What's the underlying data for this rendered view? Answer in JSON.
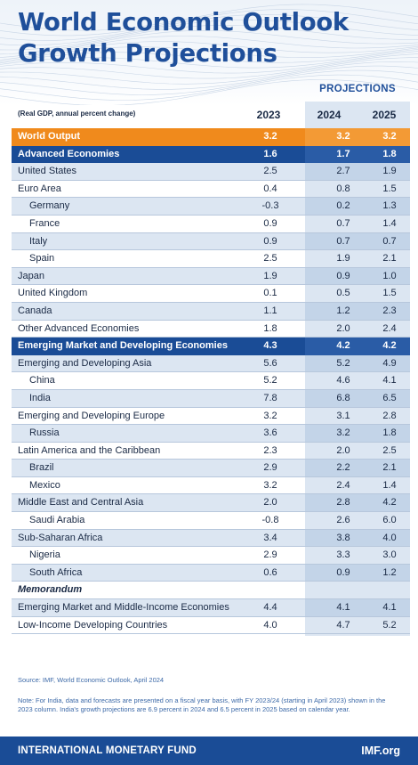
{
  "title_line1": "World Economic Outlook",
  "title_line2": "Growth Projections",
  "projections_label": "PROJECTIONS",
  "unit_note": "(Real GDP, annual percent change)",
  "years": [
    "2023",
    "2024",
    "2025"
  ],
  "rows": [
    {
      "name": "World Output",
      "values": [
        "3.2",
        "3.2",
        "3.2"
      ],
      "style": "orange"
    },
    {
      "name": "Advanced Economies",
      "values": [
        "1.6",
        "1.7",
        "1.8"
      ],
      "style": "blue"
    },
    {
      "name": "United States",
      "values": [
        "2.5",
        "2.7",
        "1.9"
      ],
      "style": "light"
    },
    {
      "name": "Euro Area",
      "values": [
        "0.4",
        "0.8",
        "1.5"
      ],
      "style": "white"
    },
    {
      "name": "Germany",
      "values": [
        "-0.3",
        "0.2",
        "1.3"
      ],
      "style": "light",
      "indent": true
    },
    {
      "name": "France",
      "values": [
        "0.9",
        "0.7",
        "1.4"
      ],
      "style": "white",
      "indent": true
    },
    {
      "name": "Italy",
      "values": [
        "0.9",
        "0.7",
        "0.7"
      ],
      "style": "light",
      "indent": true
    },
    {
      "name": "Spain",
      "values": [
        "2.5",
        "1.9",
        "2.1"
      ],
      "style": "white",
      "indent": true
    },
    {
      "name": "Japan",
      "values": [
        "1.9",
        "0.9",
        "1.0"
      ],
      "style": "light"
    },
    {
      "name": "United Kingdom",
      "values": [
        "0.1",
        "0.5",
        "1.5"
      ],
      "style": "white"
    },
    {
      "name": "Canada",
      "values": [
        "1.1",
        "1.2",
        "2.3"
      ],
      "style": "light"
    },
    {
      "name": "Other Advanced Economies",
      "values": [
        "1.8",
        "2.0",
        "2.4"
      ],
      "style": "white"
    },
    {
      "name": "Emerging Market and Developing Economies",
      "values": [
        "4.3",
        "4.2",
        "4.2"
      ],
      "style": "blue"
    },
    {
      "name": "Emerging and Developing Asia",
      "values": [
        "5.6",
        "5.2",
        "4.9"
      ],
      "style": "light"
    },
    {
      "name": "China",
      "values": [
        "5.2",
        "4.6",
        "4.1"
      ],
      "style": "white",
      "indent": true
    },
    {
      "name": "India",
      "values": [
        "7.8",
        "6.8",
        "6.5"
      ],
      "style": "light",
      "indent": true
    },
    {
      "name": "Emerging and Developing Europe",
      "values": [
        "3.2",
        "3.1",
        "2.8"
      ],
      "style": "white"
    },
    {
      "name": "Russia",
      "values": [
        "3.6",
        "3.2",
        "1.8"
      ],
      "style": "light",
      "indent": true
    },
    {
      "name": "Latin America and the Caribbean",
      "values": [
        "2.3",
        "2.0",
        "2.5"
      ],
      "style": "white"
    },
    {
      "name": "Brazil",
      "values": [
        "2.9",
        "2.2",
        "2.1"
      ],
      "style": "light",
      "indent": true
    },
    {
      "name": "Mexico",
      "values": [
        "3.2",
        "2.4",
        "1.4"
      ],
      "style": "white",
      "indent": true
    },
    {
      "name": "Middle East and Central Asia",
      "values": [
        "2.0",
        "2.8",
        "4.2"
      ],
      "style": "light"
    },
    {
      "name": "Saudi Arabia",
      "values": [
        "-0.8",
        "2.6",
        "6.0"
      ],
      "style": "white",
      "indent": true
    },
    {
      "name": "Sub-Saharan Africa",
      "values": [
        "3.4",
        "3.8",
        "4.0"
      ],
      "style": "light"
    },
    {
      "name": "Nigeria",
      "values": [
        "2.9",
        "3.3",
        "3.0"
      ],
      "style": "white",
      "indent": true
    },
    {
      "name": "South Africa",
      "values": [
        "0.6",
        "0.9",
        "1.2"
      ],
      "style": "light",
      "indent": true
    },
    {
      "name": "Memorandum",
      "values": [
        "",
        "",
        ""
      ],
      "style": "white",
      "memo": true
    },
    {
      "name": "Emerging Market and Middle-Income Economies",
      "values": [
        "4.4",
        "4.1",
        "4.1"
      ],
      "style": "light"
    },
    {
      "name": "Low-Income Developing Countries",
      "values": [
        "4.0",
        "4.7",
        "5.2"
      ],
      "style": "white"
    }
  ],
  "source": "Source: IMF, World Economic Outlook, April 2024",
  "note": "Note: For India, data and forecasts are presented on a fiscal year basis, with FY 2023/24 (starting in April 2023) shown in the 2023 column. India's growth projections are 6.9 percent in 2024 and 6.5 percent in 2025 based on calendar year.",
  "footer_org": "INTERNATIONAL MONETARY FUND",
  "footer_site": "IMF.org",
  "colors": {
    "brand_blue": "#1a4c96",
    "title_blue": "#1f4f9a",
    "orange": "#f08a1c",
    "light_row": "#dce6f2"
  }
}
